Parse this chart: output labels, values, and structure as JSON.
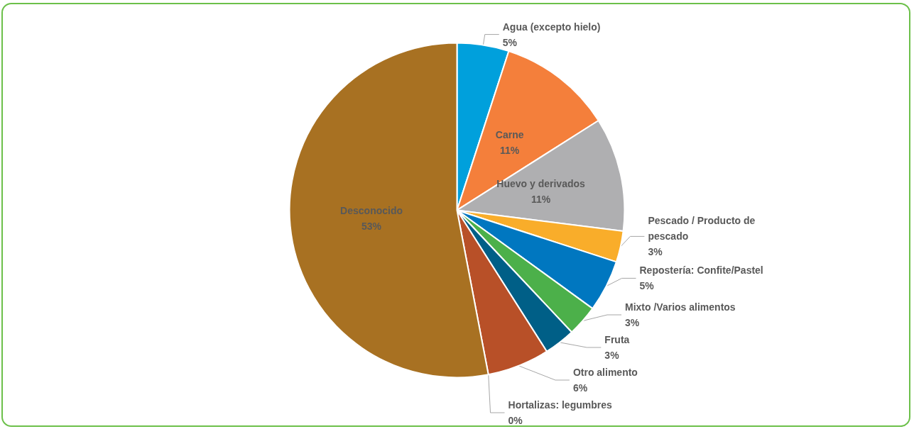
{
  "chart_data": {
    "type": "pie",
    "categories": [
      "Agua (excepto hielo)",
      "Carne",
      "Huevo y derivados",
      "Pescado / Producto de pescado",
      "Repostería: Confite/Pastel",
      "Mixto /Varios alimentos",
      "Fruta",
      "Otro alimento",
      "Hortalizas: legumbres",
      "Desconocido"
    ],
    "values": [
      5,
      11,
      11,
      3,
      5,
      3,
      3,
      6,
      0,
      53
    ],
    "colors": [
      "#00a0dc",
      "#f47f3b",
      "#afafb1",
      "#f9ad2a",
      "#0077c0",
      "#4cb04a",
      "#005f87",
      "#b85028",
      "#7a9a3a",
      "#a87122"
    ],
    "value_labels": [
      "5%",
      "11%",
      "11%",
      "3%",
      "5%",
      "3%",
      "3%",
      "6%",
      "0%",
      "53%"
    ],
    "legend": false
  }
}
